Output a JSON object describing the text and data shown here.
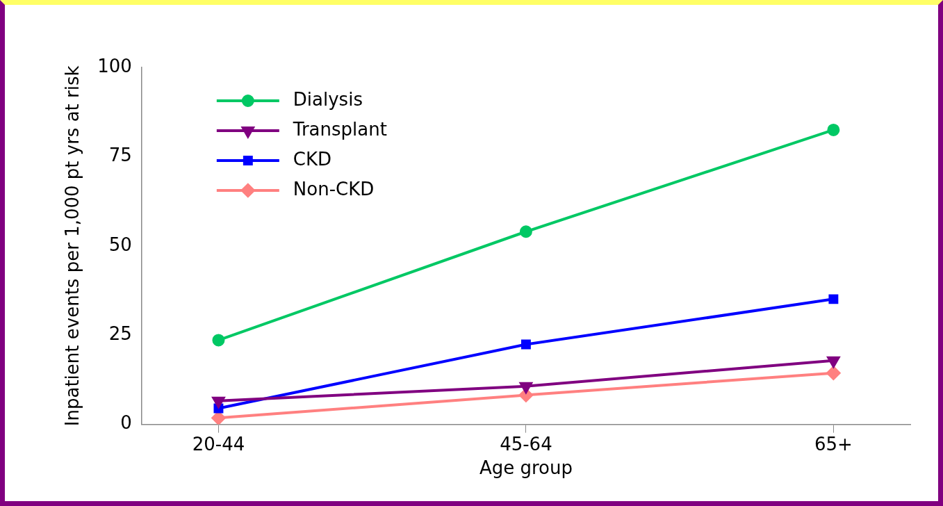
{
  "chart_data": {
    "type": "line",
    "xlabel": "Age group",
    "ylabel": "Inpatient events per 1,000 pt yrs at risk",
    "categories": [
      "20-44",
      "45-64",
      "65+"
    ],
    "ylim": [
      0,
      100
    ],
    "yticks": [
      0,
      25,
      50,
      75,
      100
    ],
    "grid": false,
    "legend": "top left",
    "line_style": "solid",
    "series": [
      {
        "name": "Dialysis",
        "color": "#00c864",
        "marker": "circle",
        "values": [
          23.6,
          54.0,
          82.5
        ]
      },
      {
        "name": "Transplant",
        "color": "#800080",
        "marker": "triangle",
        "values": [
          6.6,
          10.7,
          17.9
        ]
      },
      {
        "name": "CKD",
        "color": "#0000ff",
        "marker": "square",
        "values": [
          4.5,
          22.4,
          35.1
        ]
      },
      {
        "name": "Non-CKD",
        "color": "#ff8080",
        "marker": "diamond",
        "values": [
          1.8,
          8.2,
          14.4
        ]
      }
    ]
  }
}
